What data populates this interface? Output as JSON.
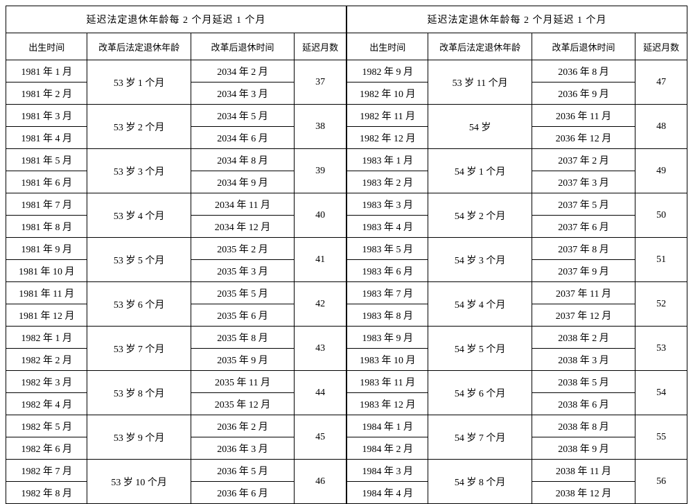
{
  "title": "延迟法定退休年龄每 2 个月延迟 1 个月",
  "headers": {
    "birth": "出生时间",
    "age": "改革后法定退休年龄",
    "retire": "改革后退休时间",
    "delay": "延迟月数"
  },
  "left": [
    {
      "b1": "1981 年 1 月",
      "b2": "1981 年 2 月",
      "age": "53 岁 1 个月",
      "r1": "2034 年 2 月",
      "r2": "2034 年 3 月",
      "d": "37"
    },
    {
      "b1": "1981 年 3 月",
      "b2": "1981 年 4 月",
      "age": "53 岁 2 个月",
      "r1": "2034 年 5 月",
      "r2": "2034 年 6 月",
      "d": "38"
    },
    {
      "b1": "1981 年 5 月",
      "b2": "1981 年 6 月",
      "age": "53 岁 3 个月",
      "r1": "2034 年 8 月",
      "r2": "2034 年 9 月",
      "d": "39"
    },
    {
      "b1": "1981 年 7 月",
      "b2": "1981 年 8 月",
      "age": "53 岁 4 个月",
      "r1": "2034 年 11 月",
      "r2": "2034 年 12 月",
      "d": "40"
    },
    {
      "b1": "1981 年 9 月",
      "b2": "1981 年 10 月",
      "age": "53 岁 5 个月",
      "r1": "2035 年 2 月",
      "r2": "2035 年 3 月",
      "d": "41"
    },
    {
      "b1": "1981 年 11 月",
      "b2": "1981 年 12 月",
      "age": "53 岁 6 个月",
      "r1": "2035 年 5 月",
      "r2": "2035 年 6 月",
      "d": "42"
    },
    {
      "b1": "1982 年 1 月",
      "b2": "1982 年 2 月",
      "age": "53 岁 7 个月",
      "r1": "2035 年 8 月",
      "r2": "2035 年 9 月",
      "d": "43"
    },
    {
      "b1": "1982 年 3 月",
      "b2": "1982 年 4 月",
      "age": "53 岁 8 个月",
      "r1": "2035 年 11 月",
      "r2": "2035 年 12 月",
      "d": "44"
    },
    {
      "b1": "1982 年 5 月",
      "b2": "1982 年 6 月",
      "age": "53 岁 9 个月",
      "r1": "2036 年 2 月",
      "r2": "2036 年 3 月",
      "d": "45"
    },
    {
      "b1": "1982 年 7 月",
      "b2": "1982 年 8 月",
      "age": "53 岁 10 个月",
      "r1": "2036 年 5 月",
      "r2": "2036 年 6 月",
      "d": "46"
    }
  ],
  "right": [
    {
      "b1": "1982 年 9 月",
      "b2": "1982 年 10 月",
      "age": "53 岁 11 个月",
      "r1": "2036 年 8 月",
      "r2": "2036 年 9 月",
      "d": "47"
    },
    {
      "b1": "1982 年 11 月",
      "b2": "1982 年 12 月",
      "age": "54 岁",
      "r1": "2036 年 11 月",
      "r2": "2036 年 12 月",
      "d": "48"
    },
    {
      "b1": "1983 年 1 月",
      "b2": "1983 年 2 月",
      "age": "54 岁 1 个月",
      "r1": "2037 年 2 月",
      "r2": "2037 年 3 月",
      "d": "49"
    },
    {
      "b1": "1983 年 3 月",
      "b2": "1983 年 4 月",
      "age": "54 岁 2 个月",
      "r1": "2037 年 5 月",
      "r2": "2037 年 6 月",
      "d": "50"
    },
    {
      "b1": "1983 年 5 月",
      "b2": "1983 年 6 月",
      "age": "54 岁 3 个月",
      "r1": "2037 年 8 月",
      "r2": "2037 年 9 月",
      "d": "51"
    },
    {
      "b1": "1983 年 7 月",
      "b2": "1983 年 8 月",
      "age": "54 岁 4 个月",
      "r1": "2037 年 11 月",
      "r2": "2037 年 12 月",
      "d": "52"
    },
    {
      "b1": "1983 年 9 月",
      "b2": "1983 年 10 月",
      "age": "54 岁 5 个月",
      "r1": "2038 年 2 月",
      "r2": "2038 年 3 月",
      "d": "53"
    },
    {
      "b1": "1983 年 11 月",
      "b2": "1983 年 12 月",
      "age": "54 岁 6 个月",
      "r1": "2038 年 5 月",
      "r2": "2038 年 6 月",
      "d": "54"
    },
    {
      "b1": "1984 年 1 月",
      "b2": "1984 年 2 月",
      "age": "54 岁 7 个月",
      "r1": "2038 年 8 月",
      "r2": "2038 年 9 月",
      "d": "55"
    },
    {
      "b1": "1984 年 3 月",
      "b2": "1984 年 4 月",
      "age": "54 岁 8 个月",
      "r1": "2038 年 11 月",
      "r2": "2038 年 12 月",
      "d": "56"
    }
  ]
}
